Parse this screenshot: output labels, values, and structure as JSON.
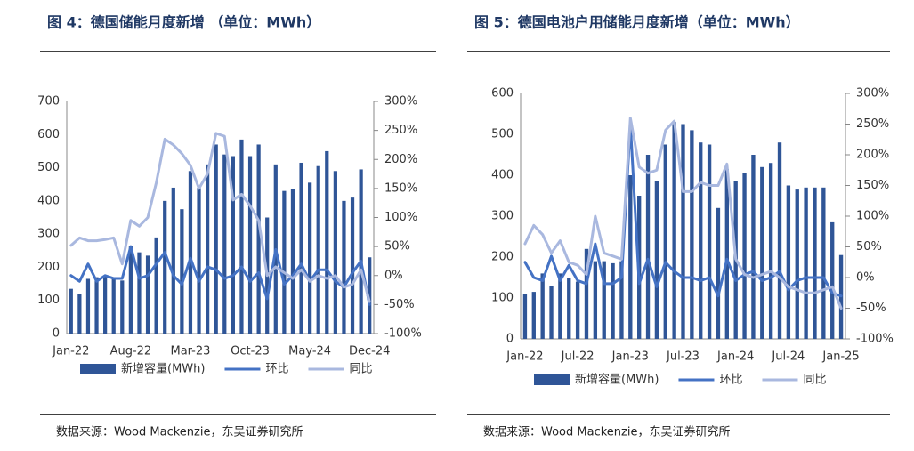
{
  "chart_data": [
    {
      "type": "bar",
      "title": "图 4：德国储能月度新增 （单位：MWh）",
      "source": "数据来源：Wood Mackenzie，东吴证券研究所",
      "categories": [
        "Jan-22",
        null,
        null,
        null,
        null,
        null,
        null,
        "Aug-22",
        null,
        null,
        null,
        null,
        null,
        null,
        "Mar-23",
        null,
        null,
        null,
        null,
        null,
        null,
        "Oct-23",
        null,
        null,
        null,
        null,
        null,
        null,
        "May-24",
        null,
        null,
        null,
        null,
        null,
        null,
        "Dec-24"
      ],
      "series": [
        {
          "name": "新增容量(MWh)",
          "color": "#2f5597",
          "values": [
            135,
            120,
            165,
            170,
            175,
            165,
            160,
            265,
            245,
            235,
            290,
            400,
            440,
            375,
            490,
            440,
            510,
            570,
            540,
            535,
            585,
            535,
            570,
            350,
            510,
            430,
            435,
            515,
            455,
            505,
            550,
            490,
            400,
            410,
            495,
            230
          ]
        },
        {
          "name": "环比",
          "color": "#4472c4",
          "axis": "y2",
          "values": [
            0,
            -10,
            20,
            -10,
            0,
            -5,
            -5,
            50,
            -5,
            0,
            20,
            40,
            0,
            -15,
            30,
            -10,
            15,
            10,
            -5,
            0,
            15,
            -10,
            5,
            -40,
            45,
            -15,
            0,
            20,
            -10,
            10,
            10,
            -10,
            -20,
            5,
            25,
            -50
          ]
        },
        {
          "name": "同比",
          "color": "#a9b8df",
          "axis": "y2",
          "values": [
            52,
            65,
            60,
            60,
            62,
            65,
            20,
            95,
            85,
            100,
            160,
            235,
            225,
            210,
            190,
            150,
            175,
            245,
            240,
            130,
            140,
            120,
            95,
            0,
            15,
            5,
            -5,
            10,
            -10,
            0,
            -5,
            0,
            -20,
            -15,
            10,
            -45
          ]
        }
      ],
      "ylim": [
        0,
        700
      ],
      "yticks": [
        0,
        100,
        200,
        300,
        400,
        500,
        600,
        700
      ],
      "y2lim": [
        -100,
        300
      ],
      "y2ticks": [
        {
          "value": -100,
          "label": "-100%"
        },
        {
          "value": -50,
          "label": "-50%"
        },
        {
          "value": 0,
          "label": "0%"
        },
        {
          "value": 50,
          "label": "50%"
        },
        {
          "value": 100,
          "label": "100%"
        },
        {
          "value": 150,
          "label": "150%"
        },
        {
          "value": 200,
          "label": "200%"
        },
        {
          "value": 250,
          "label": "250%"
        },
        {
          "value": 300,
          "label": "300%"
        }
      ]
    },
    {
      "type": "bar",
      "title": "图 5：德国电池户用储能月度新增（单位：MWh）",
      "source": "数据来源：Wood Mackenzie，东吴证券研究所",
      "categories": [
        "Jan-22",
        null,
        null,
        null,
        null,
        null,
        "Jul-22",
        null,
        null,
        null,
        null,
        null,
        "Jan-23",
        null,
        null,
        null,
        null,
        null,
        "Jul-23",
        null,
        null,
        null,
        null,
        null,
        "Jan-24",
        null,
        null,
        null,
        null,
        null,
        "Jul-24",
        null,
        null,
        null,
        null,
        null,
        "Jan-25"
      ],
      "series": [
        {
          "name": "新增容量(MWh)",
          "color": "#2f5597",
          "values": [
            110,
            115,
            160,
            130,
            160,
            150,
            140,
            220,
            190,
            190,
            185,
            190,
            400,
            350,
            450,
            385,
            475,
            530,
            525,
            510,
            480,
            475,
            320,
            415,
            385,
            405,
            450,
            420,
            430,
            480,
            375,
            365,
            370,
            370,
            370,
            285,
            205
          ]
        },
        {
          "name": "环比",
          "color": "#4472c4",
          "axis": "y2",
          "values": [
            25,
            0,
            -5,
            35,
            -5,
            20,
            -5,
            -10,
            55,
            -10,
            -10,
            0,
            250,
            -10,
            30,
            -15,
            25,
            10,
            0,
            0,
            -5,
            0,
            -30,
            30,
            -5,
            5,
            10,
            -5,
            0,
            10,
            -20,
            -5,
            0,
            0,
            0,
            -25,
            -30
          ]
        },
        {
          "name": "同比",
          "color": "#a9b8df",
          "axis": "y2",
          "values": [
            55,
            85,
            70,
            40,
            60,
            25,
            20,
            5,
            100,
            40,
            35,
            30,
            260,
            180,
            170,
            175,
            240,
            255,
            140,
            140,
            155,
            150,
            150,
            185,
            30,
            5,
            0,
            5,
            10,
            0,
            -15,
            -20,
            -25,
            -25,
            -20,
            -15,
            -50
          ]
        }
      ],
      "ylim": [
        0,
        600
      ],
      "yticks": [
        0,
        100,
        200,
        300,
        400,
        500,
        600
      ],
      "y2lim": [
        -100,
        300
      ],
      "y2ticks": [
        {
          "value": -100,
          "label": "-100%"
        },
        {
          "value": -50,
          "label": "-50%"
        },
        {
          "value": 0,
          "label": "0%"
        },
        {
          "value": 50,
          "label": "50%"
        },
        {
          "value": 100,
          "label": "100%"
        },
        {
          "value": 150,
          "label": "150%"
        },
        {
          "value": 200,
          "label": "200%"
        },
        {
          "value": 250,
          "label": "250%"
        },
        {
          "value": 300,
          "label": "300%"
        }
      ]
    }
  ]
}
